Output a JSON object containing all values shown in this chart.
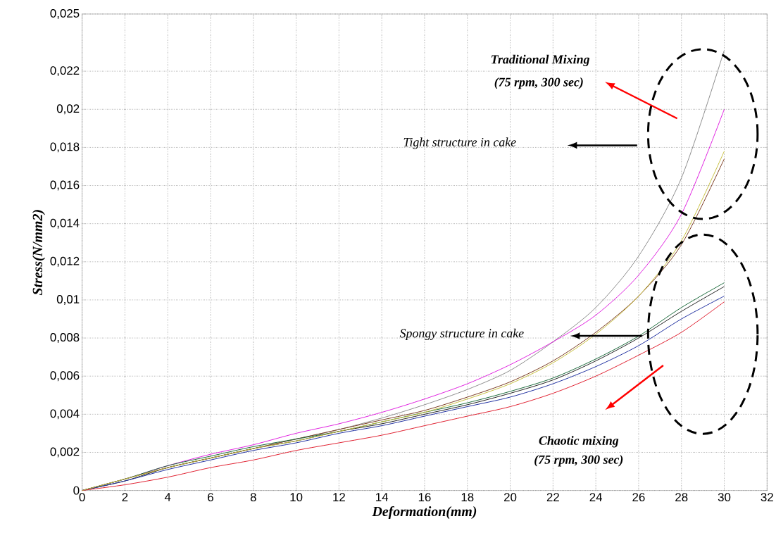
{
  "chart_data": {
    "type": "line",
    "xlabel": "Deformation(mm)",
    "ylabel": "Stress(N/mm2)",
    "x": [
      0,
      2,
      4,
      6,
      8,
      10,
      12,
      14,
      16,
      18,
      20,
      22,
      24,
      26,
      28,
      30
    ],
    "series": [
      {
        "color": "#8c8c8c",
        "values": [
          0,
          0.0006,
          0.0012,
          0.0017,
          0.0022,
          0.0027,
          0.0032,
          0.0038,
          0.0045,
          0.0053,
          0.0063,
          0.0078,
          0.0096,
          0.0123,
          0.0164,
          0.0231
        ]
      },
      {
        "color": "#e020e0",
        "values": [
          0,
          0.0006,
          0.0013,
          0.0019,
          0.0024,
          0.003,
          0.0035,
          0.0041,
          0.0048,
          0.0056,
          0.0066,
          0.0078,
          0.0092,
          0.0113,
          0.0145,
          0.02
        ]
      },
      {
        "color": "#7a3a20",
        "values": [
          0,
          0.0006,
          0.0012,
          0.0017,
          0.0022,
          0.0027,
          0.0032,
          0.0037,
          0.0042,
          0.0049,
          0.0057,
          0.0068,
          0.0083,
          0.0102,
          0.0129,
          0.0174
        ]
      },
      {
        "color": "#1a6a3a",
        "values": [
          0,
          0.0006,
          0.0013,
          0.0018,
          0.0023,
          0.0027,
          0.0031,
          0.0036,
          0.0041,
          0.0046,
          0.0052,
          0.0059,
          0.0069,
          0.0081,
          0.0096,
          0.0109
        ]
      },
      {
        "color": "#202020",
        "values": [
          0,
          0.0005,
          0.0012,
          0.0017,
          0.0022,
          0.0026,
          0.0031,
          0.0035,
          0.004,
          0.0045,
          0.0051,
          0.0058,
          0.0068,
          0.008,
          0.0094,
          0.0107
        ]
      },
      {
        "color": "#2030a0",
        "values": [
          0,
          0.0005,
          0.0011,
          0.0016,
          0.0021,
          0.0025,
          0.003,
          0.0034,
          0.0039,
          0.0044,
          0.0049,
          0.0056,
          0.0065,
          0.0076,
          0.009,
          0.0102
        ]
      },
      {
        "color": "#e02030",
        "values": [
          0,
          0.0003,
          0.0007,
          0.0012,
          0.0016,
          0.0021,
          0.0025,
          0.0029,
          0.0034,
          0.0039,
          0.0044,
          0.0051,
          0.006,
          0.0071,
          0.0083,
          0.0099
        ]
      },
      {
        "color": "#c8c040",
        "values": [
          0,
          0.0006,
          0.0012,
          0.0017,
          0.0022,
          0.0026,
          0.0031,
          0.0036,
          0.0041,
          0.0048,
          0.0056,
          0.0067,
          0.0082,
          0.0102,
          0.0131,
          0.0178
        ]
      }
    ],
    "xlim": [
      0,
      32
    ],
    "xticks": [
      0,
      2,
      4,
      6,
      8,
      10,
      12,
      14,
      16,
      18,
      20,
      22,
      24,
      26,
      28,
      30,
      32
    ],
    "ylim": [
      0,
      0.025
    ],
    "yticks": [
      0,
      {
        "value": 0.002,
        "label": "0,002"
      },
      {
        "value": 0.004,
        "label": "0,004"
      },
      {
        "value": 0.006,
        "label": "0,006"
      },
      {
        "value": 0.008,
        "label": "0,008"
      },
      {
        "value": 0.01,
        "label": "0,01"
      },
      {
        "value": 0.012,
        "label": "0,012"
      },
      {
        "value": 0.014,
        "label": "0,014"
      },
      {
        "value": 0.016,
        "label": "0,016"
      },
      {
        "value": 0.018,
        "label": "0,018"
      },
      {
        "value": 0.02,
        "label": "0,02"
      },
      {
        "value": 0.022,
        "label": "0,022"
      },
      {
        "value": 0.025,
        "label": "0,025"
      }
    ],
    "grid": true,
    "marker": "none",
    "line_style": "solid",
    "annotations": [
      "Traditional Mixing",
      "(75 rpm, 300 sec)",
      "Tight structure in cake",
      "Spongy structure in cake",
      "Chaotic mixing",
      "(75 rpm, 300 sec)"
    ]
  }
}
